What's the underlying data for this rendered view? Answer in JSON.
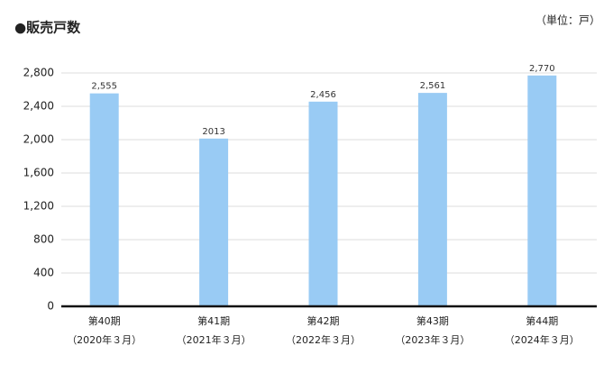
{
  "chart_data": {
    "type": "bar",
    "title": "●販売戸数",
    "unit_label": "（単位：戸）",
    "categories": [
      [
        "第40期",
        "（2020年３月）"
      ],
      [
        "第41期",
        "（2021年３月）"
      ],
      [
        "第42期",
        "（2022年３月）"
      ],
      [
        "第43期",
        "（2023年３月）"
      ],
      [
        "第44期",
        "（2024年３月）"
      ]
    ],
    "values": [
      2555,
      2013,
      2456,
      2561,
      2770
    ],
    "value_labels": [
      "2,555",
      "2013",
      "2,456",
      "2,561",
      "2,770"
    ],
    "color": "#99cbf4",
    "ylim": [
      0,
      2800
    ],
    "yticks": [
      0,
      400,
      800,
      {
        "value": 1200,
        "label": "1,200"
      },
      {
        "value": 1600,
        "label": "1,600"
      },
      {
        "value": 2000,
        "label": "2,000"
      },
      {
        "value": 2400,
        "label": "2,400"
      },
      {
        "value": 2800,
        "label": "2,800"
      }
    ],
    "grid": true
  }
}
